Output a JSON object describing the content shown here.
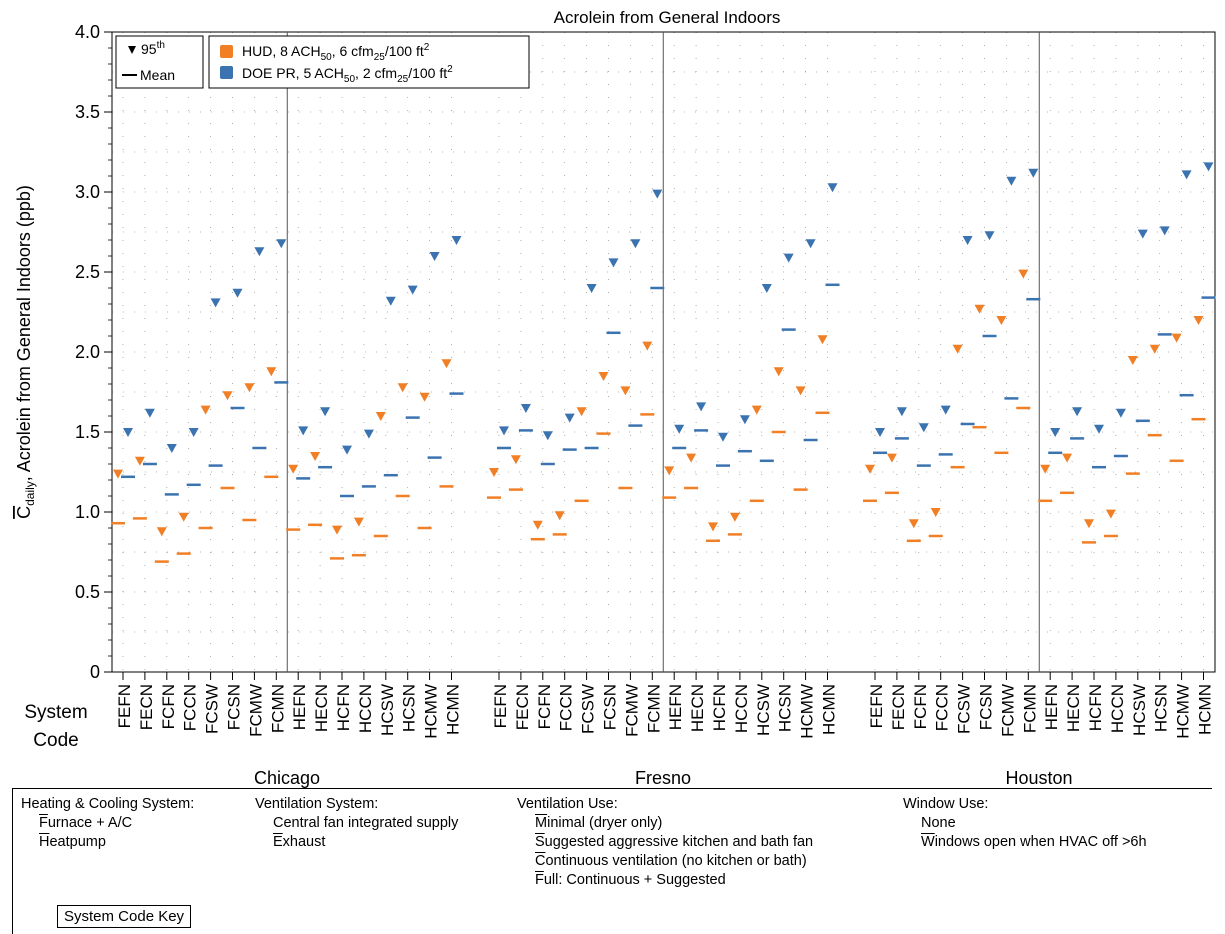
{
  "chart_data": {
    "type": "scatter",
    "title": "Acrolein from General Indoors",
    "ylabel": "C",
    "ylabel_sub": "daily",
    "ylabel_rest": ", Acrolein from General Indoors (ppb)",
    "ylim": [
      0,
      4.0
    ],
    "yticks": [
      "0",
      "0.5",
      "1.0",
      "1.5",
      "2.0",
      "2.5",
      "3.0",
      "3.5",
      "4.0"
    ],
    "x_axis_title_line1": "System",
    "x_axis_title_line2": "Code",
    "categories": [
      "FEFN",
      "FECN",
      "FCFN",
      "FCCN",
      "FCSW",
      "FCSN",
      "FCMW",
      "FCMN",
      "HEFN",
      "HECN",
      "HCFN",
      "HCCN",
      "HCSW",
      "HCSN",
      "HCMW",
      "HCMN"
    ],
    "groups": [
      "Chicago",
      "Fresno",
      "Houston"
    ],
    "legend": {
      "marker_95": "95",
      "marker_95_sup": "th",
      "marker_mean": "Mean",
      "hud_a": "HUD, 8 ACH",
      "hud_b": "50",
      "hud_c": ", 6 cfm",
      "hud_d": "25",
      "hud_e": "/100 ft",
      "hud_f": "2",
      "doe_a": "DOE PR, 5 ACH",
      "doe_b": "50",
      "doe_c": ", 2 cfm",
      "doe_d": "25",
      "doe_e": "/100 ft",
      "doe_f": "2"
    },
    "colors": {
      "HUD": "#f07f26",
      "DOE": "#3a73b0"
    },
    "series": [
      {
        "name": "HUD, 8 ACH50, 6 cfm25/100 ft2",
        "p95": {
          "Chicago": [
            1.24,
            1.32,
            0.88,
            0.97,
            1.64,
            1.73,
            1.78,
            1.88,
            1.27,
            1.35,
            0.89,
            0.94,
            1.6,
            1.78,
            1.72,
            1.93
          ],
          "Fresno": [
            1.25,
            1.33,
            0.92,
            0.98,
            1.63,
            1.85,
            1.76,
            2.04,
            1.26,
            1.34,
            0.91,
            0.97,
            1.64,
            1.88,
            1.76,
            2.08
          ],
          "Houston": [
            1.27,
            1.34,
            0.93,
            1.0,
            2.02,
            2.27,
            2.2,
            2.49,
            1.27,
            1.34,
            0.93,
            0.99,
            1.95,
            2.02,
            2.09,
            2.2
          ]
        },
        "mean": {
          "Chicago": [
            0.93,
            0.96,
            0.69,
            0.74,
            0.9,
            1.15,
            0.95,
            1.22,
            0.89,
            0.92,
            0.71,
            0.73,
            0.85,
            1.1,
            0.9,
            1.16
          ],
          "Fresno": [
            1.09,
            1.14,
            0.83,
            0.86,
            1.07,
            1.49,
            1.15,
            1.61,
            1.09,
            1.15,
            0.82,
            0.86,
            1.07,
            1.5,
            1.14,
            1.62
          ],
          "Houston": [
            1.07,
            1.12,
            0.82,
            0.85,
            1.28,
            1.53,
            1.37,
            1.65,
            1.07,
            1.12,
            0.81,
            0.85,
            1.24,
            1.48,
            1.32,
            1.58
          ]
        }
      },
      {
        "name": "DOE PR, 5 ACH50, 2 cfm25/100 ft2",
        "p95": {
          "Chicago": [
            1.5,
            1.62,
            1.4,
            1.5,
            2.31,
            2.37,
            2.63,
            2.68,
            1.51,
            1.63,
            1.39,
            1.49,
            2.32,
            2.39,
            2.6,
            2.7
          ],
          "Fresno": [
            1.51,
            1.65,
            1.48,
            1.59,
            2.4,
            2.56,
            2.68,
            2.99,
            1.52,
            1.66,
            1.47,
            1.58,
            2.4,
            2.59,
            2.68,
            3.03
          ],
          "Houston": [
            1.5,
            1.63,
            1.53,
            1.64,
            2.7,
            2.73,
            3.07,
            3.12,
            1.5,
            1.63,
            1.52,
            1.62,
            2.74,
            2.76,
            3.11,
            3.16
          ]
        },
        "mean": {
          "Chicago": [
            1.22,
            1.3,
            1.11,
            1.17,
            1.29,
            1.65,
            1.4,
            1.81,
            1.21,
            1.28,
            1.1,
            1.16,
            1.23,
            1.59,
            1.34,
            1.74
          ],
          "Fresno": [
            1.4,
            1.51,
            1.3,
            1.39,
            1.4,
            2.12,
            1.54,
            2.4,
            1.4,
            1.51,
            1.29,
            1.38,
            1.32,
            2.14,
            1.45,
            2.42
          ],
          "Houston": [
            1.37,
            1.46,
            1.29,
            1.36,
            1.55,
            2.1,
            1.71,
            2.33,
            1.37,
            1.46,
            1.28,
            1.35,
            1.57,
            2.11,
            1.73,
            2.34
          ]
        }
      }
    ]
  },
  "key": {
    "heating": {
      "title": "Heating & Cooling System:",
      "items": [
        {
          "l": "F",
          "r": "urnace + A/C"
        },
        {
          "l": "H",
          "r": "eatpump"
        }
      ]
    },
    "ventilation": {
      "title": "Ventilation System:",
      "items": [
        {
          "l": "",
          "r": "Central fan integrated supply"
        },
        {
          "l": "E",
          "r": "xhaust"
        }
      ]
    },
    "use": {
      "title": "Ventilation Use:",
      "items": [
        {
          "l": "M",
          "r": "inimal (dryer only)"
        },
        {
          "l": "S",
          "r": "uggested aggressive kitchen and bath fan"
        },
        {
          "l": "C",
          "r": "ontinuous ventilation (no kitchen or bath)"
        },
        {
          "l": "F",
          "r": "ull: Continuous + Suggested"
        }
      ]
    },
    "window": {
      "title": "Window Use:",
      "items": [
        {
          "l": "",
          "r": "None"
        },
        {
          "l": "W",
          "r": "indows open when HVAC off >6h"
        }
      ]
    },
    "button": "System Code Key"
  }
}
